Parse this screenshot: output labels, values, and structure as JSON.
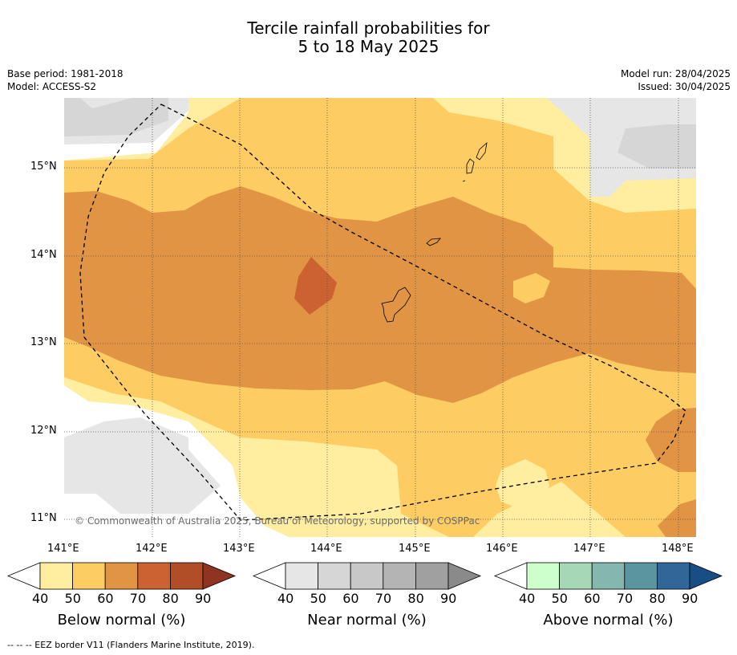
{
  "title": {
    "line1": "Tercile rainfall probabilities for",
    "line2": "5 to 18 May 2025"
  },
  "meta_left": {
    "base_period": "Base period: 1981-2018",
    "model": "Model: ACCESS-S2"
  },
  "meta_right": {
    "model_run": "Model run: 28/04/2025",
    "issued": "Issued: 30/04/2025"
  },
  "map": {
    "lat_labels": [
      "15°N",
      "14°N",
      "13°N",
      "12°N",
      "11°N"
    ],
    "lon_labels": [
      "141°E",
      "142°E",
      "143°E",
      "144°E",
      "145°E",
      "146°E",
      "147°E",
      "148°E"
    ],
    "copyright": "© Commonwealth of Australia 2025, Bureau of Meteorology, supported by COSPPac"
  },
  "colorbars": [
    {
      "title": "Below normal (%)",
      "ticks": [
        "40",
        "50",
        "60",
        "70",
        "80",
        "90"
      ],
      "colors": [
        "#ffeda0",
        "#fdcc63",
        "#e09444",
        "#cc6131",
        "#b14e27",
        "#8e3420"
      ]
    },
    {
      "title": "Near normal (%)",
      "ticks": [
        "40",
        "50",
        "60",
        "70",
        "80",
        "90"
      ],
      "colors": [
        "#e6e6e6",
        "#d6d6d6",
        "#c8c8c8",
        "#b4b4b4",
        "#a0a0a0",
        "#8a8a8a"
      ]
    },
    {
      "title": "Above normal (%)",
      "ticks": [
        "40",
        "50",
        "60",
        "70",
        "80",
        "90"
      ],
      "colors": [
        "#ccffcc",
        "#a6d8b8",
        "#84b8ae",
        "#5a95a0",
        "#326699",
        "#184d85"
      ]
    }
  ],
  "footnote": "--  --  -- EEZ border V11 (Flanders Marine Institute, 2019)."
}
